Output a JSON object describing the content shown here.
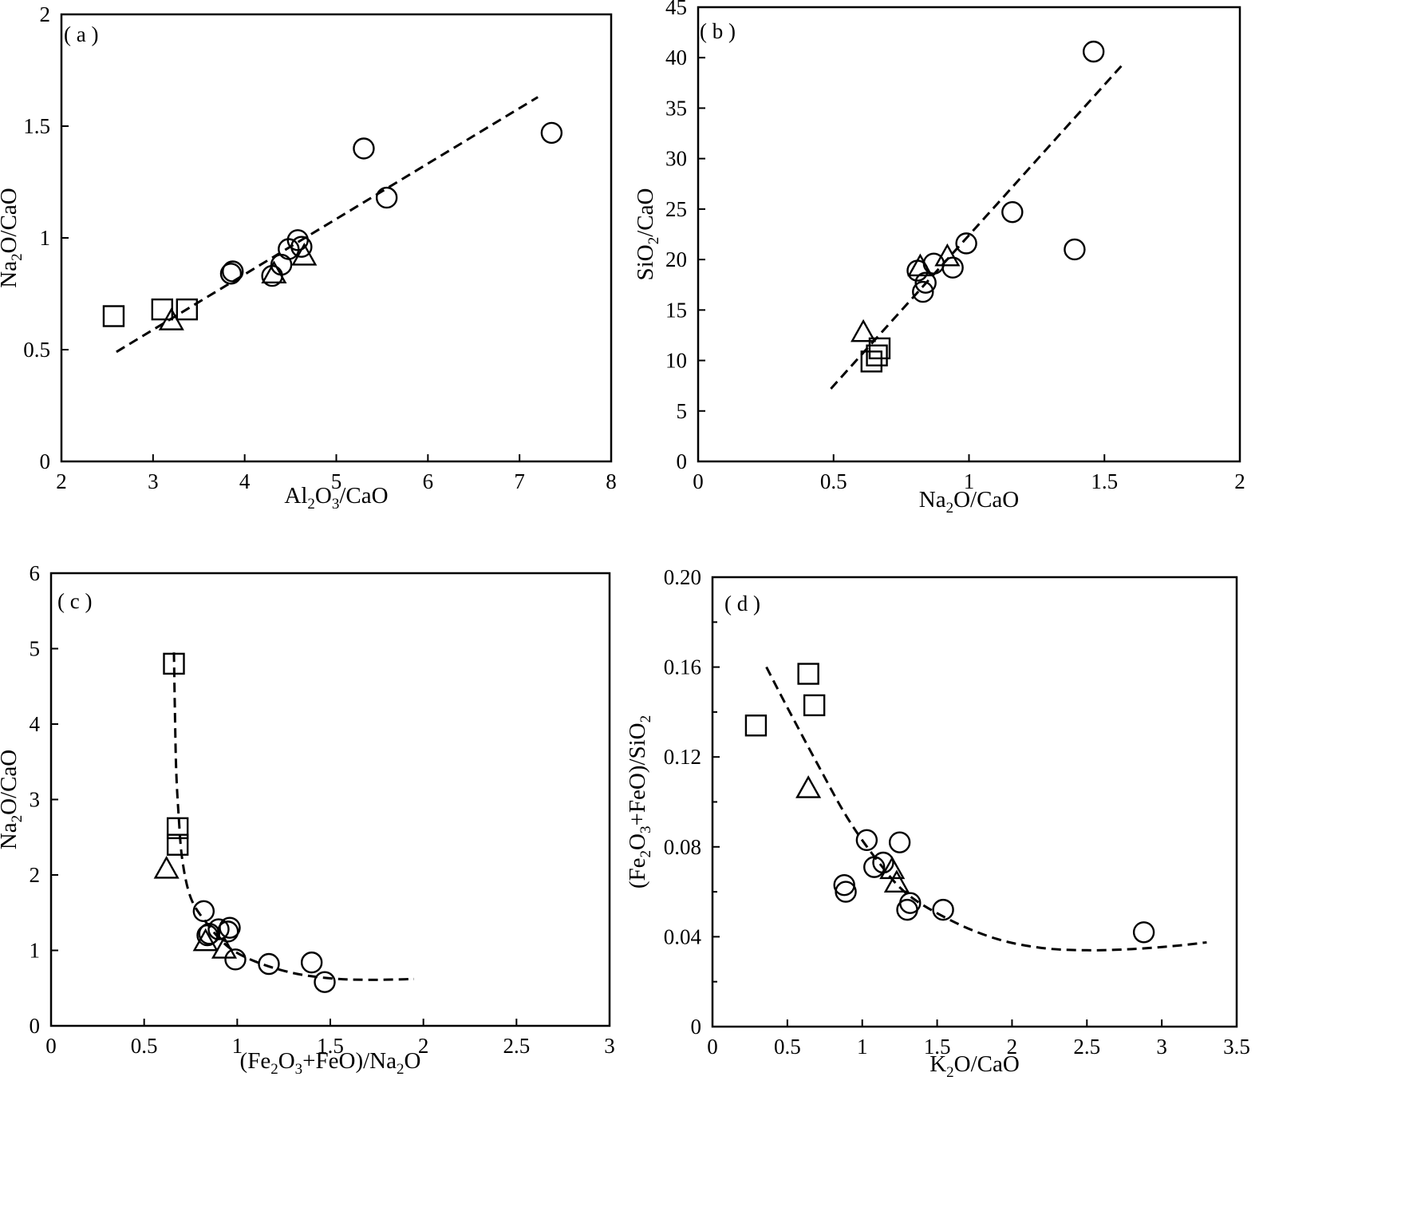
{
  "figure": {
    "background": "#ffffff",
    "ink": "#000000"
  },
  "chart_data": [
    {
      "id": "a",
      "type": "scatter",
      "label": "( a )",
      "xlabel": {
        "parts": [
          [
            "Al",
            ""
          ],
          [
            "2",
            "sub"
          ],
          [
            "O",
            ""
          ],
          [
            "3",
            "sub"
          ],
          [
            "/CaO",
            ""
          ]
        ]
      },
      "ylabel": {
        "parts": [
          [
            "Na",
            ""
          ],
          [
            "2",
            "sub"
          ],
          [
            "O/CaO",
            ""
          ]
        ]
      },
      "xlim": [
        2,
        8
      ],
      "ylim": [
        0,
        2
      ],
      "xticks": [
        2,
        3,
        4,
        5,
        6,
        7,
        8
      ],
      "xtick_labels": [
        "2",
        "3",
        "4",
        "5",
        "6",
        "7",
        "8"
      ],
      "yticks": [
        0,
        0.5,
        1,
        1.5,
        2
      ],
      "ytick_labels": [
        "0",
        "0.5",
        "1",
        "1.5",
        "2"
      ],
      "markers": [
        {
          "shape": "square",
          "x": 2.57,
          "y": 0.65
        },
        {
          "shape": "square",
          "x": 3.1,
          "y": 0.68
        },
        {
          "shape": "square",
          "x": 3.37,
          "y": 0.68
        },
        {
          "shape": "triangle",
          "x": 3.2,
          "y": 0.63
        },
        {
          "shape": "triangle",
          "x": 4.32,
          "y": 0.84
        },
        {
          "shape": "triangle",
          "x": 4.65,
          "y": 0.92
        },
        {
          "shape": "circle",
          "x": 3.85,
          "y": 0.84
        },
        {
          "shape": "circle",
          "x": 3.87,
          "y": 0.85
        },
        {
          "shape": "circle",
          "x": 4.3,
          "y": 0.83
        },
        {
          "shape": "circle",
          "x": 4.4,
          "y": 0.88
        },
        {
          "shape": "circle",
          "x": 4.48,
          "y": 0.95
        },
        {
          "shape": "circle",
          "x": 4.58,
          "y": 0.99
        },
        {
          "shape": "circle",
          "x": 4.62,
          "y": 0.96
        },
        {
          "shape": "circle",
          "x": 5.3,
          "y": 1.4
        },
        {
          "shape": "circle",
          "x": 5.55,
          "y": 1.18
        },
        {
          "shape": "circle",
          "x": 7.35,
          "y": 1.47
        }
      ],
      "trend": {
        "kind": "linear",
        "points": [
          [
            2.6,
            0.49
          ],
          [
            7.2,
            1.63
          ]
        ]
      }
    },
    {
      "id": "b",
      "type": "scatter",
      "label": "( b )",
      "xlabel": {
        "parts": [
          [
            "Na",
            ""
          ],
          [
            "2",
            "sub"
          ],
          [
            "O/CaO",
            ""
          ]
        ]
      },
      "ylabel": {
        "parts": [
          [
            "SiO",
            ""
          ],
          [
            "2",
            "sub"
          ],
          [
            "/CaO",
            ""
          ]
        ]
      },
      "xlim": [
        0,
        2
      ],
      "ylim": [
        0,
        45
      ],
      "xticks": [
        0,
        0.5,
        1,
        1.5,
        2
      ],
      "xtick_labels": [
        "0",
        "0.5",
        "1",
        "1.5",
        "2"
      ],
      "yticks": [
        0,
        5,
        10,
        15,
        20,
        25,
        30,
        35,
        40,
        45
      ],
      "ytick_labels": [
        "0",
        "5",
        "10",
        "15",
        "20",
        "25",
        "30",
        "35",
        "40",
        "45"
      ],
      "markers": [
        {
          "shape": "square",
          "x": 0.67,
          "y": 11.2
        },
        {
          "shape": "square",
          "x": 0.66,
          "y": 10.5
        },
        {
          "shape": "square",
          "x": 0.64,
          "y": 9.9
        },
        {
          "shape": "triangle",
          "x": 0.61,
          "y": 12.8
        },
        {
          "shape": "triangle",
          "x": 0.82,
          "y": 19.3
        },
        {
          "shape": "triangle",
          "x": 0.92,
          "y": 20.3
        },
        {
          "shape": "circle",
          "x": 0.81,
          "y": 18.9
        },
        {
          "shape": "circle",
          "x": 0.83,
          "y": 16.8
        },
        {
          "shape": "circle",
          "x": 0.84,
          "y": 17.7
        },
        {
          "shape": "circle",
          "x": 0.87,
          "y": 19.6
        },
        {
          "shape": "circle",
          "x": 0.94,
          "y": 19.2
        },
        {
          "shape": "circle",
          "x": 0.99,
          "y": 21.6
        },
        {
          "shape": "circle",
          "x": 1.16,
          "y": 24.7
        },
        {
          "shape": "circle",
          "x": 1.39,
          "y": 21.0
        },
        {
          "shape": "circle",
          "x": 1.46,
          "y": 40.6
        }
      ],
      "trend": {
        "kind": "linear",
        "points": [
          [
            0.49,
            7.2
          ],
          [
            1.57,
            39.4
          ]
        ]
      }
    },
    {
      "id": "c",
      "type": "scatter",
      "label": "( c )",
      "xlabel": {
        "parts": [
          [
            "(Fe",
            ""
          ],
          [
            "2",
            "sub"
          ],
          [
            "O",
            ""
          ],
          [
            "3",
            "sub"
          ],
          [
            "+FeO)/Na",
            ""
          ],
          [
            "2",
            "sub"
          ],
          [
            "O",
            ""
          ]
        ]
      },
      "ylabel": {
        "parts": [
          [
            "Na",
            ""
          ],
          [
            "2",
            "sub"
          ],
          [
            "O/CaO",
            ""
          ]
        ]
      },
      "xlim": [
        0,
        3
      ],
      "ylim": [
        0,
        6
      ],
      "xticks": [
        0,
        0.5,
        1,
        1.5,
        2,
        2.5,
        3
      ],
      "xtick_labels": [
        "0",
        "0.5",
        "1",
        "1.5",
        "2",
        "2.5",
        "3"
      ],
      "yticks": [
        0,
        1,
        2,
        3,
        4,
        5,
        6
      ],
      "ytick_labels": [
        "0",
        "1",
        "2",
        "3",
        "4",
        "5",
        "6"
      ],
      "markers": [
        {
          "shape": "square",
          "x": 0.66,
          "y": 4.8
        },
        {
          "shape": "square",
          "x": 0.68,
          "y": 2.62
        },
        {
          "shape": "square",
          "x": 0.68,
          "y": 2.4
        },
        {
          "shape": "triangle",
          "x": 0.62,
          "y": 2.08
        },
        {
          "shape": "triangle",
          "x": 0.83,
          "y": 1.12
        },
        {
          "shape": "triangle",
          "x": 0.93,
          "y": 1.02
        },
        {
          "shape": "circle",
          "x": 0.82,
          "y": 1.52
        },
        {
          "shape": "circle",
          "x": 0.84,
          "y": 1.2
        },
        {
          "shape": "circle",
          "x": 0.85,
          "y": 1.22
        },
        {
          "shape": "circle",
          "x": 0.9,
          "y": 1.28
        },
        {
          "shape": "circle",
          "x": 0.95,
          "y": 1.25
        },
        {
          "shape": "circle",
          "x": 0.96,
          "y": 1.3
        },
        {
          "shape": "circle",
          "x": 0.99,
          "y": 0.88
        },
        {
          "shape": "circle",
          "x": 1.17,
          "y": 0.82
        },
        {
          "shape": "circle",
          "x": 1.4,
          "y": 0.84
        },
        {
          "shape": "circle",
          "x": 1.47,
          "y": 0.58
        }
      ],
      "trend": {
        "kind": "curve",
        "points": [
          [
            0.66,
            4.95
          ],
          [
            0.665,
            4.2
          ],
          [
            0.672,
            3.4
          ],
          [
            0.685,
            2.8
          ],
          [
            0.705,
            2.2
          ],
          [
            0.75,
            1.7
          ],
          [
            0.83,
            1.38
          ],
          [
            0.95,
            1.05
          ],
          [
            1.1,
            0.85
          ],
          [
            1.3,
            0.7
          ],
          [
            1.5,
            0.63
          ],
          [
            1.7,
            0.61
          ],
          [
            1.95,
            0.62
          ]
        ]
      }
    },
    {
      "id": "d",
      "type": "scatter",
      "label": "( d )",
      "xlabel": {
        "parts": [
          [
            "K",
            ""
          ],
          [
            "2",
            "sub"
          ],
          [
            "O/CaO",
            ""
          ]
        ]
      },
      "ylabel": {
        "parts": [
          [
            "(Fe",
            ""
          ],
          [
            "2",
            "sub"
          ],
          [
            "O",
            ""
          ],
          [
            "3",
            "sub"
          ],
          [
            "+FeO)/SiO",
            ""
          ],
          [
            "2",
            "sub"
          ]
        ]
      },
      "xlim": [
        0,
        3.5
      ],
      "ylim": [
        0,
        0.2
      ],
      "xticks": [
        0,
        0.5,
        1,
        1.5,
        2,
        2.5,
        3,
        3.5
      ],
      "xtick_labels": [
        "0",
        "0.5",
        "1",
        "1.5",
        "2",
        "2.5",
        "3",
        "3.5"
      ],
      "yticks": [
        0,
        0.04,
        0.08,
        0.12,
        0.16,
        0.2
      ],
      "ytick_labels": [
        "0",
        "0.04",
        "0.08",
        "0.12",
        "0.16",
        "0.20"
      ],
      "minor_yticks": [
        0.02,
        0.06,
        0.1,
        0.14,
        0.18
      ],
      "markers": [
        {
          "shape": "square",
          "x": 0.29,
          "y": 0.134
        },
        {
          "shape": "square",
          "x": 0.64,
          "y": 0.157
        },
        {
          "shape": "square",
          "x": 0.68,
          "y": 0.143
        },
        {
          "shape": "triangle",
          "x": 0.64,
          "y": 0.106
        },
        {
          "shape": "triangle",
          "x": 1.2,
          "y": 0.07
        },
        {
          "shape": "triangle",
          "x": 1.23,
          "y": 0.064
        },
        {
          "shape": "circle",
          "x": 0.88,
          "y": 0.063
        },
        {
          "shape": "circle",
          "x": 0.89,
          "y": 0.06
        },
        {
          "shape": "circle",
          "x": 1.03,
          "y": 0.083
        },
        {
          "shape": "circle",
          "x": 1.08,
          "y": 0.071
        },
        {
          "shape": "circle",
          "x": 1.14,
          "y": 0.073
        },
        {
          "shape": "circle",
          "x": 1.25,
          "y": 0.082
        },
        {
          "shape": "circle",
          "x": 1.3,
          "y": 0.052
        },
        {
          "shape": "circle",
          "x": 1.32,
          "y": 0.055
        },
        {
          "shape": "circle",
          "x": 1.54,
          "y": 0.052
        },
        {
          "shape": "circle",
          "x": 2.88,
          "y": 0.042
        }
      ],
      "trend": {
        "kind": "curve",
        "points": [
          [
            0.36,
            0.16
          ],
          [
            0.5,
            0.142
          ],
          [
            0.7,
            0.117
          ],
          [
            0.9,
            0.093
          ],
          [
            1.1,
            0.074
          ],
          [
            1.3,
            0.059
          ],
          [
            1.6,
            0.047
          ],
          [
            1.9,
            0.039
          ],
          [
            2.2,
            0.035
          ],
          [
            2.5,
            0.034
          ],
          [
            2.8,
            0.0345
          ],
          [
            3.1,
            0.036
          ],
          [
            3.3,
            0.0375
          ]
        ]
      }
    }
  ]
}
